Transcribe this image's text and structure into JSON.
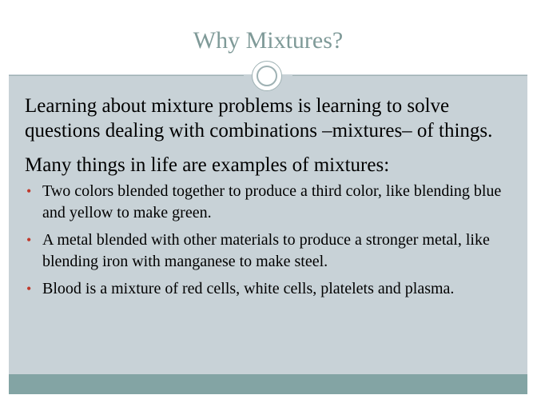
{
  "slide": {
    "title": "Why Mixtures?",
    "intro": "Learning about mixture problems is learning to solve questions dealing with combinations –mixtures– of things.",
    "examples_heading": "Many things in life are examples of mixtures:",
    "bullets": [
      "Two colors blended together to produce a third color, like blending blue and yellow to make green.",
      "A metal blended with other materials to produce a stronger metal, like blending iron with manganese to make steel.",
      "Blood is a mixture of red cells, white cells, platelets and plasma."
    ],
    "bullet_glyph": "•"
  },
  "colors": {
    "title": "#7f9a98",
    "background": "#c8d2d7",
    "bullet": "#c0392b",
    "footer": "#83a4a4"
  }
}
